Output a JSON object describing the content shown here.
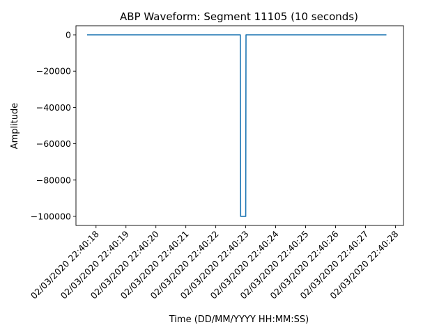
{
  "chart_data": {
    "type": "line",
    "title": "ABP Waveform: Segment 11105 (10 seconds)",
    "xlabel": "Time (DD/MM/YYYY HH:MM:SS)",
    "ylabel": "Amplitude",
    "x_ticks": [
      "02/03/2020 22:40:18",
      "02/03/2020 22:40:19",
      "02/03/2020 22:40:20",
      "02/03/2020 22:40:21",
      "02/03/2020 22:40:22",
      "02/03/2020 22:40:23",
      "02/03/2020 22:40:24",
      "02/03/2020 22:40:25",
      "02/03/2020 22:40:26",
      "02/03/2020 22:40:27",
      "02/03/2020 22:40:28"
    ],
    "y_ticks": [
      0,
      -20000,
      -40000,
      -60000,
      -80000,
      -100000
    ],
    "y_tick_labels": [
      "0",
      "−20000",
      "−40000",
      "−60000",
      "−80000",
      "−100000"
    ],
    "xlim": [
      "02/03/2020 22:40:17.33",
      "02/03/2020 22:40:28.27"
    ],
    "ylim": [
      -105000,
      5000
    ],
    "grid": false,
    "series": [
      {
        "color": "#1f77b4",
        "x": [
          "02/03/2020 22:40:17.70",
          "02/03/2020 22:40:22.82",
          "02/03/2020 22:40:22.83",
          "02/03/2020 22:40:23.00",
          "02/03/2020 22:40:23.01",
          "02/03/2020 22:40:27.70"
        ],
        "y": [
          0,
          0,
          -100000,
          -100000,
          0,
          0
        ]
      }
    ]
  }
}
